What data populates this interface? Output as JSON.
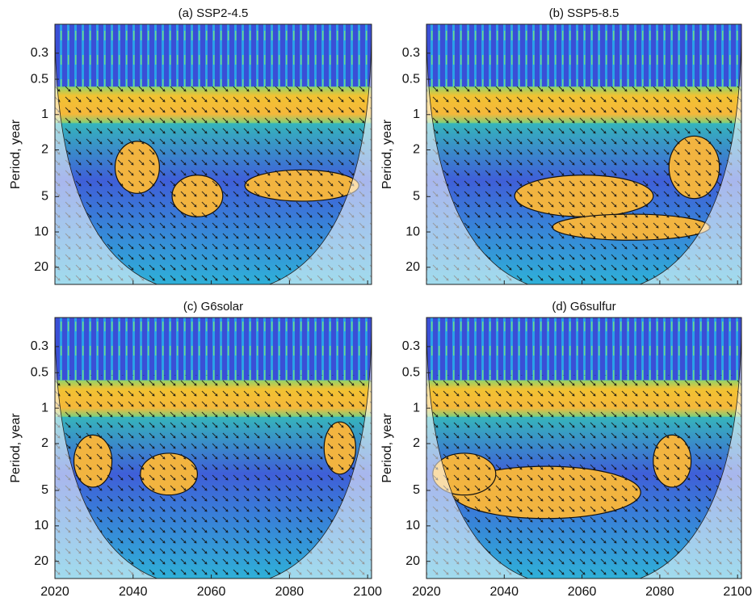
{
  "chart_data": [
    {
      "type": "wavelet",
      "title": "(a) SSP2-4.5",
      "ylabel": "Period, year",
      "log_y": true,
      "reversed_y": true,
      "show_xtick_labels": false,
      "xlim": [
        2020,
        2101
      ],
      "xticks": [
        2020,
        2040,
        2060,
        2080,
        2100
      ],
      "ylim": [
        0.17,
        28
      ],
      "yticks": [
        0.3,
        0.5,
        1,
        2,
        5,
        10,
        20
      ]
    },
    {
      "type": "wavelet",
      "title": "(b) SSP5-8.5",
      "ylabel": "Period, year",
      "log_y": true,
      "reversed_y": true,
      "show_xtick_labels": false,
      "xlim": [
        2020,
        2101
      ],
      "xticks": [
        2020,
        2040,
        2060,
        2080,
        2100
      ],
      "ylim": [
        0.17,
        28
      ],
      "yticks": [
        0.3,
        0.5,
        1,
        2,
        5,
        10,
        20
      ]
    },
    {
      "type": "wavelet",
      "title": "(c) G6solar",
      "ylabel": "Period, year",
      "log_y": true,
      "reversed_y": true,
      "show_xtick_labels": true,
      "xlim": [
        2020,
        2101
      ],
      "xticks": [
        2020,
        2040,
        2060,
        2080,
        2100
      ],
      "ylim": [
        0.17,
        28
      ],
      "yticks": [
        0.3,
        0.5,
        1,
        2,
        5,
        10,
        20
      ]
    },
    {
      "type": "wavelet",
      "title": "(d) G6sulfur",
      "ylabel": "Period, year",
      "log_y": true,
      "reversed_y": true,
      "show_xtick_labels": true,
      "xlim": [
        2020,
        2101
      ],
      "xticks": [
        2020,
        2040,
        2060,
        2080,
        2100
      ],
      "ylim": [
        0.17,
        28
      ],
      "yticks": [
        0.3,
        0.5,
        1,
        2,
        5,
        10,
        20
      ]
    }
  ]
}
